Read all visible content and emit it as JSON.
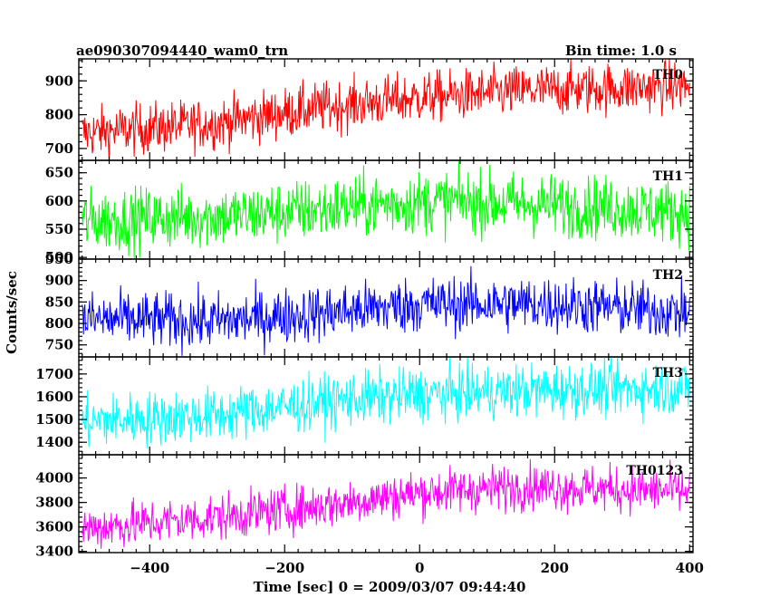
{
  "chart_data": {
    "type": "line",
    "title": "ae090307094440_wam0_trn",
    "bin_time_label": "Bin time: 1.0 s",
    "xlabel": "Time [sec] 0 = 2009/03/07 09:44:40",
    "ylabel": "Counts/sec",
    "xlim": [
      -505,
      405
    ],
    "x_ticks": [
      -400,
      -200,
      0,
      200,
      400
    ],
    "x_tick_labels": [
      "−400",
      "−200",
      "0",
      "200",
      "400"
    ],
    "x_range_data": [
      -500,
      400
    ],
    "grid": false,
    "panels": [
      {
        "name": "TH0",
        "color": "#ff0000",
        "ylim": [
          665,
          965
        ],
        "y_ticks": [
          700,
          800,
          900
        ],
        "trend": [
          [
            -500,
            745
          ],
          [
            -300,
            775
          ],
          [
            -150,
            820
          ],
          [
            0,
            850
          ],
          [
            150,
            870
          ],
          [
            400,
            885
          ]
        ],
        "noise": 38
      },
      {
        "name": "TH1",
        "color": "#00ff00",
        "ylim": [
          497,
          672
        ],
        "y_ticks": [
          500,
          550,
          600,
          650
        ],
        "trend": [
          [
            -500,
            565
          ],
          [
            -250,
            575
          ],
          [
            -50,
            595
          ],
          [
            50,
            600
          ],
          [
            250,
            590
          ],
          [
            400,
            580
          ]
        ],
        "noise": 28
      },
      {
        "name": "TH2",
        "color": "#0000ff",
        "ylim": [
          722,
          950
        ],
        "y_ticks": [
          750,
          800,
          850,
          900,
          950
        ],
        "trend": [
          [
            -500,
            810
          ],
          [
            -300,
            805
          ],
          [
            -100,
            830
          ],
          [
            0,
            845
          ],
          [
            200,
            845
          ],
          [
            400,
            825
          ]
        ],
        "noise": 33
      },
      {
        "name": "TH3",
        "color": "#00ffff",
        "ylim": [
          1345,
          1775
        ],
        "y_ticks": [
          1400,
          1500,
          1600,
          1700
        ],
        "trend": [
          [
            -500,
            1490
          ],
          [
            -300,
            1520
          ],
          [
            -100,
            1590
          ],
          [
            0,
            1610
          ],
          [
            200,
            1630
          ],
          [
            400,
            1640
          ]
        ],
        "noise": 60
      },
      {
        "name": "TH0123",
        "color": "#ff00ff",
        "ylim": [
          3390,
          4190
        ],
        "y_ticks": [
          3400,
          3600,
          3800,
          4000
        ],
        "trend": [
          [
            -500,
            3590
          ],
          [
            -300,
            3680
          ],
          [
            -150,
            3770
          ],
          [
            0,
            3880
          ],
          [
            150,
            3930
          ],
          [
            400,
            3890
          ]
        ],
        "noise": 95
      }
    ]
  }
}
